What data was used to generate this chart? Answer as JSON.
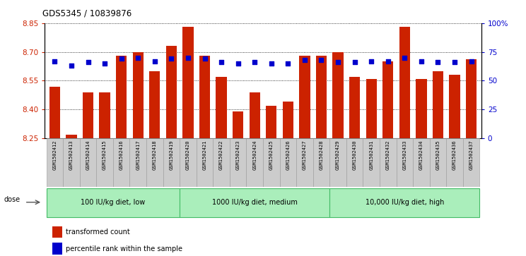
{
  "title": "GDS5345 / 10839876",
  "samples": [
    "GSM1502412",
    "GSM1502413",
    "GSM1502414",
    "GSM1502415",
    "GSM1502416",
    "GSM1502417",
    "GSM1502418",
    "GSM1502419",
    "GSM1502420",
    "GSM1502421",
    "GSM1502422",
    "GSM1502423",
    "GSM1502424",
    "GSM1502425",
    "GSM1502426",
    "GSM1502427",
    "GSM1502428",
    "GSM1502429",
    "GSM1502430",
    "GSM1502431",
    "GSM1502432",
    "GSM1502433",
    "GSM1502434",
    "GSM1502435",
    "GSM1502436",
    "GSM1502437"
  ],
  "bar_values": [
    8.52,
    8.27,
    8.49,
    8.49,
    8.68,
    8.7,
    8.6,
    8.73,
    8.83,
    8.68,
    8.57,
    8.39,
    8.49,
    8.42,
    8.44,
    8.68,
    8.68,
    8.7,
    8.57,
    8.56,
    8.65,
    8.83,
    8.56,
    8.6,
    8.58,
    8.66
  ],
  "percentile_values": [
    67,
    63,
    66,
    65,
    69,
    70,
    67,
    69,
    70,
    69,
    66,
    65,
    66,
    65,
    65,
    68,
    68,
    66,
    66,
    67,
    67,
    70,
    67,
    66,
    66,
    67
  ],
  "ylim_left": [
    8.25,
    8.85
  ],
  "ylim_right": [
    0,
    100
  ],
  "yticks_left": [
    8.25,
    8.4,
    8.55,
    8.7,
    8.85
  ],
  "yticks_right": [
    0,
    25,
    50,
    75,
    100
  ],
  "ytick_labels_right": [
    "0",
    "25",
    "50",
    "75",
    "100%"
  ],
  "bar_color": "#cc2200",
  "dot_color": "#0000cc",
  "bar_width": 0.65,
  "groups": [
    {
      "label": "100 IU/kg diet, low",
      "start": 0,
      "end": 8
    },
    {
      "label": "1000 IU/kg diet, medium",
      "start": 8,
      "end": 17
    },
    {
      "label": "10,000 IU/kg diet, high",
      "start": 17,
      "end": 26
    }
  ],
  "group_color": "#aaeebb",
  "group_border_color": "#44bb66",
  "legend_items": [
    {
      "label": "transformed count",
      "color": "#cc2200"
    },
    {
      "label": "percentile rank within the sample",
      "color": "#0000cc"
    }
  ],
  "dose_label": "dose",
  "xtick_bg": "#cccccc"
}
